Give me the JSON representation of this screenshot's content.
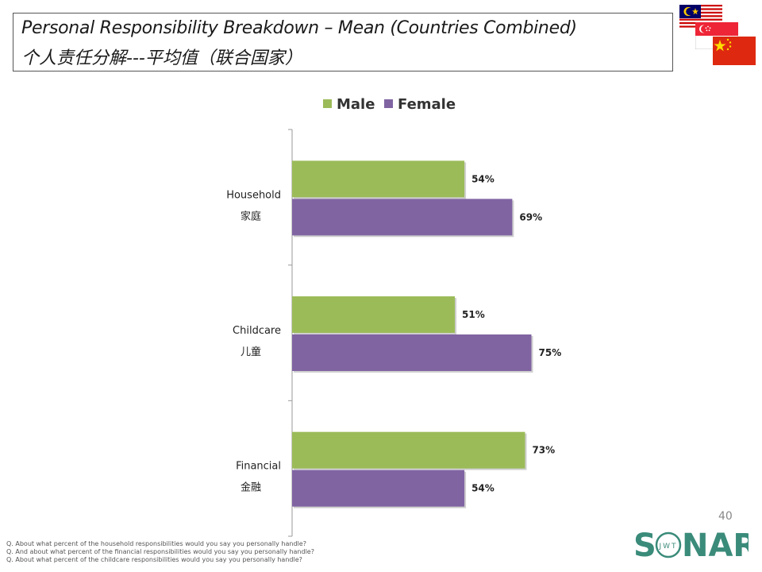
{
  "header": {
    "title_en": "Personal Responsibility Breakdown – Mean (Countries Combined)",
    "title_cn": "个人责任分解---平均值（联合国家）"
  },
  "flags": [
    "malaysia-flag",
    "singapore-flag",
    "china-flag"
  ],
  "page_number": "40",
  "logo": {
    "text_before": "S",
    "text_after": "NAR",
    "ring_text": "JWT"
  },
  "footnotes": [
    "Q. About what percent of the household responsibilities would you say you personally handle?",
    "Q. And about what percent of the financial responsibilities would you say you personally handle?",
    "Q. About what percent of the childcare responsibilities would you say you personally handle?"
  ],
  "chart_data": {
    "type": "bar",
    "orientation": "horizontal",
    "title": "",
    "categories": [
      {
        "en": "Household",
        "cn": "家庭"
      },
      {
        "en": "Childcare",
        "cn": "儿童"
      },
      {
        "en": "Financial",
        "cn": "金融"
      }
    ],
    "series": [
      {
        "name": "Male",
        "color": "#9BBB59",
        "values": [
          54,
          51,
          73
        ],
        "labels": [
          "54%",
          "51%",
          "73%"
        ]
      },
      {
        "name": "Female",
        "color": "#8064A2",
        "values": [
          69,
          75,
          54
        ],
        "labels": [
          "69%",
          "75%",
          "54%"
        ]
      }
    ],
    "xlim": [
      0,
      100
    ],
    "legend_position": "top",
    "grid": false
  }
}
